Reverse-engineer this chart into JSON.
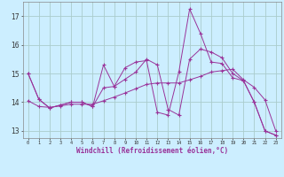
{
  "title": "",
  "xlabel": "Windchill (Refroidissement éolien,°C)",
  "bg_color": "#cceeff",
  "grid_color": "#aacccc",
  "line_color": "#993399",
  "xlim": [
    -0.5,
    23.5
  ],
  "ylim": [
    12.75,
    17.5
  ],
  "xticks": [
    0,
    1,
    2,
    3,
    4,
    5,
    6,
    7,
    8,
    9,
    10,
    11,
    12,
    13,
    14,
    15,
    16,
    17,
    18,
    19,
    20,
    21,
    22,
    23
  ],
  "yticks": [
    13,
    14,
    15,
    16,
    17
  ],
  "series": [
    [
      15.0,
      14.1,
      13.8,
      13.9,
      14.0,
      14.0,
      13.85,
      15.3,
      14.55,
      15.2,
      15.4,
      15.45,
      13.65,
      13.55,
      15.05,
      17.25,
      16.4,
      15.4,
      15.35,
      14.85,
      14.75,
      14.0,
      13.0,
      12.85
    ],
    [
      15.0,
      14.1,
      13.8,
      13.9,
      14.0,
      14.0,
      13.85,
      14.5,
      14.55,
      14.8,
      15.05,
      15.5,
      15.3,
      13.75,
      13.55,
      15.5,
      15.85,
      15.75,
      15.55,
      15.0,
      14.75,
      14.0,
      13.0,
      12.85
    ],
    [
      14.05,
      13.85,
      13.82,
      13.87,
      13.93,
      13.93,
      13.93,
      14.05,
      14.18,
      14.32,
      14.47,
      14.62,
      14.67,
      14.67,
      14.67,
      14.78,
      14.9,
      15.05,
      15.1,
      15.15,
      14.78,
      14.52,
      14.08,
      13.0
    ]
  ]
}
